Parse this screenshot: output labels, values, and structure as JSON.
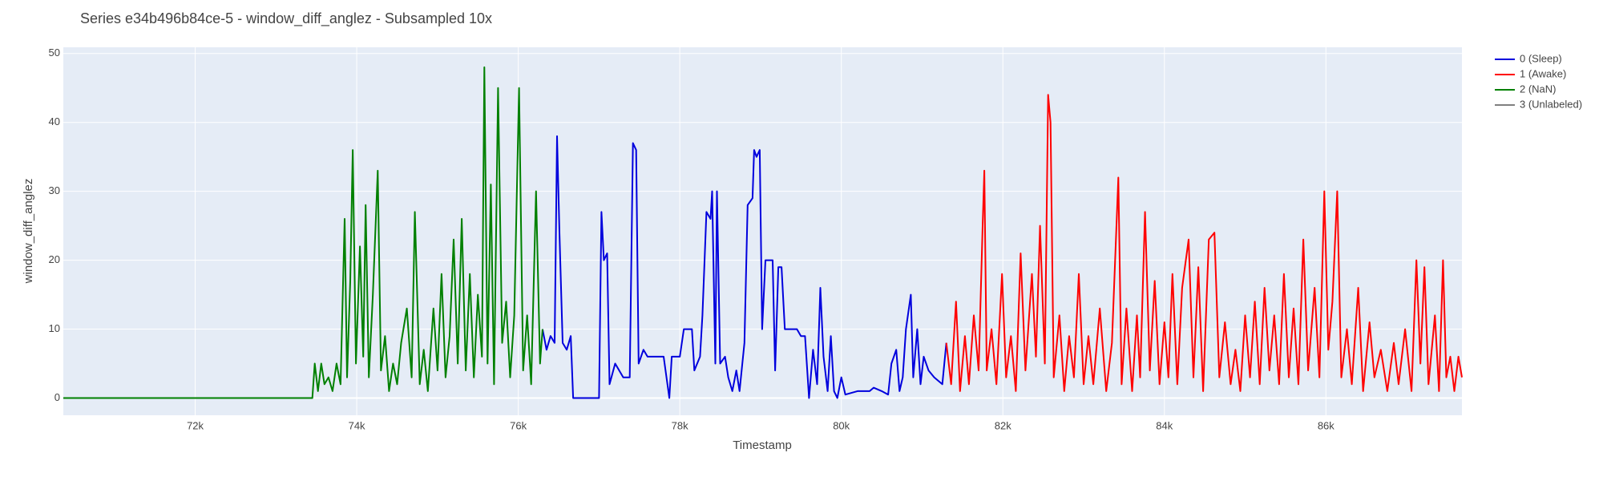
{
  "chart_data": {
    "type": "line",
    "title": "Series e34b496b84ce-5 - window_diff_anglez - Subsampled 10x",
    "x_label": "Timestamp",
    "y_label": "window_diff_anglez",
    "xlim": [
      70367,
      87684
    ],
    "ylim": [
      -2.5,
      50.9
    ],
    "xticks": [
      {
        "value": 72000,
        "label": "72k"
      },
      {
        "value": 74000,
        "label": "74k"
      },
      {
        "value": 76000,
        "label": "76k"
      },
      {
        "value": 78000,
        "label": "78k"
      },
      {
        "value": 80000,
        "label": "80k"
      },
      {
        "value": 82000,
        "label": "82k"
      },
      {
        "value": 84000,
        "label": "84k"
      },
      {
        "value": 86000,
        "label": "86k"
      }
    ],
    "yticks": [
      0,
      10,
      20,
      30,
      40,
      50
    ],
    "grid": true,
    "series": [
      {
        "name": "0 (Sleep)",
        "color": "#0000dd",
        "x": [
          76300,
          76350,
          76400,
          76450,
          76480,
          76510,
          76550,
          76600,
          76650,
          76680,
          77000,
          77030,
          77060,
          77100,
          77130,
          77200,
          77300,
          77380,
          77420,
          77460,
          77490,
          77550,
          77600,
          77700,
          77800,
          77870,
          77900,
          78000,
          78050,
          78150,
          78180,
          78250,
          78280,
          78330,
          78380,
          78400,
          78440,
          78460,
          78500,
          78560,
          78600,
          78650,
          78700,
          78740,
          78800,
          78840,
          78900,
          78920,
          78950,
          78990,
          79020,
          79060,
          79150,
          79180,
          79220,
          79260,
          79300,
          79400,
          79450,
          79500,
          79550,
          79600,
          79650,
          79700,
          79740,
          79780,
          79830,
          79870,
          79910,
          79950,
          80000,
          80050,
          80200,
          80350,
          80400,
          80500,
          80580,
          80620,
          80680,
          80720,
          80760,
          80800,
          80860,
          80890,
          80940,
          80980,
          81020,
          81080,
          81150,
          81250,
          81300
        ],
        "values": [
          10,
          7,
          9,
          8,
          38,
          24,
          8,
          7,
          9,
          0,
          0,
          27,
          20,
          21,
          2,
          5,
          3,
          3,
          37,
          36,
          5,
          7,
          6,
          6,
          6,
          0,
          6,
          6,
          10,
          10,
          4,
          6,
          12,
          27,
          26,
          30,
          5,
          30,
          5,
          6,
          3,
          1,
          4,
          1,
          8,
          28,
          29,
          36,
          35,
          36,
          10,
          20,
          20,
          4,
          19,
          19,
          10,
          10,
          10,
          9,
          9,
          0,
          7,
          2,
          16,
          6,
          1,
          9,
          1,
          0,
          3,
          0.5,
          1,
          1,
          1.5,
          1,
          0.5,
          5,
          7,
          1,
          3,
          10,
          15,
          3,
          10,
          2,
          6,
          4,
          3,
          2,
          8
        ]
      },
      {
        "name": "1 (Awake)",
        "color": "#ff0000",
        "x": [
          81300,
          81360,
          81420,
          81470,
          81530,
          81580,
          81640,
          81700,
          81750,
          81770,
          81800,
          81860,
          81920,
          81990,
          82040,
          82100,
          82160,
          82220,
          82280,
          82360,
          82410,
          82460,
          82520,
          82560,
          82590,
          82630,
          82700,
          82760,
          82820,
          82880,
          82940,
          83000,
          83060,
          83120,
          83200,
          83280,
          83350,
          83430,
          83470,
          83530,
          83600,
          83660,
          83700,
          83760,
          83820,
          83880,
          83940,
          84000,
          84050,
          84100,
          84160,
          84220,
          84300,
          84360,
          84420,
          84480,
          84550,
          84620,
          84680,
          84750,
          84820,
          84880,
          84940,
          85000,
          85060,
          85120,
          85180,
          85240,
          85300,
          85360,
          85420,
          85480,
          85540,
          85600,
          85660,
          85720,
          85780,
          85860,
          85920,
          85980,
          86030,
          86080,
          86140,
          86190,
          86260,
          86320,
          86400,
          86460,
          86540,
          86600,
          86680,
          86760,
          86840,
          86900,
          86980,
          87060,
          87120,
          87170,
          87220,
          87270,
          87350,
          87400,
          87450,
          87490,
          87540,
          87590,
          87640,
          87684
        ],
        "values": [
          8,
          2,
          14,
          1,
          9,
          2,
          12,
          4,
          25,
          33,
          4,
          10,
          2,
          18,
          3,
          9,
          1,
          21,
          4,
          18,
          6,
          25,
          5,
          44,
          40,
          3,
          12,
          1,
          9,
          3,
          18,
          2,
          9,
          2,
          13,
          1,
          8,
          32,
          2,
          13,
          1,
          12,
          3,
          27,
          4,
          17,
          2,
          11,
          3,
          18,
          2,
          16,
          23,
          3,
          19,
          1,
          23,
          24,
          3,
          11,
          2,
          7,
          1,
          12,
          3,
          14,
          2,
          16,
          4,
          12,
          2,
          18,
          3,
          13,
          2,
          23,
          4,
          16,
          3,
          30,
          7,
          14,
          30,
          3,
          10,
          2,
          16,
          1,
          11,
          3,
          7,
          1,
          8,
          2,
          10,
          1,
          20,
          5,
          19,
          2,
          12,
          1,
          20,
          3,
          6,
          1,
          6,
          3
        ]
      },
      {
        "name": "2 (NaN)",
        "color": "#008000",
        "x": [
          70367,
          73450,
          73480,
          73520,
          73560,
          73600,
          73650,
          73700,
          73750,
          73800,
          73850,
          73880,
          73920,
          73950,
          73990,
          74040,
          74080,
          74110,
          74150,
          74200,
          74260,
          74300,
          74350,
          74400,
          74450,
          74500,
          74550,
          74620,
          74680,
          74720,
          74780,
          74830,
          74880,
          74950,
          75000,
          75050,
          75100,
          75150,
          75200,
          75250,
          75300,
          75350,
          75400,
          75450,
          75500,
          75550,
          75580,
          75620,
          75660,
          75700,
          75750,
          75800,
          75850,
          75900,
          75950,
          76010,
          76060,
          76110,
          76160,
          76220,
          76270,
          76300
        ],
        "values": [
          0,
          0,
          5,
          1,
          5,
          2,
          3,
          1,
          5,
          2,
          26,
          3,
          17,
          36,
          5,
          22,
          6,
          28,
          3,
          15,
          33,
          4,
          9,
          1,
          5,
          2,
          8,
          13,
          3,
          27,
          2,
          7,
          1,
          13,
          4,
          18,
          3,
          9,
          23,
          5,
          26,
          4,
          18,
          3,
          15,
          6,
          48,
          5,
          31,
          2,
          45,
          8,
          14,
          3,
          12,
          45,
          4,
          12,
          2,
          30,
          5,
          10
        ]
      },
      {
        "name": "3 (Unlabeled)",
        "color": "#808080",
        "x": [],
        "values": []
      }
    ]
  }
}
